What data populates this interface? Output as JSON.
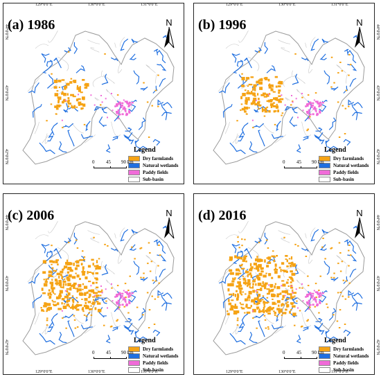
{
  "panels": [
    {
      "title": "(a) 1986",
      "density": 0.0
    },
    {
      "title": "(b) 1996",
      "density": 0.15
    },
    {
      "title": "(c) 2006",
      "density": 0.55
    },
    {
      "title": "(d) 2016",
      "density": 0.75
    }
  ],
  "top_ticks": [
    "129°0'0\"E",
    "130°0'0\"E",
    "131°0'0\"E"
  ],
  "bottom_ticks": [
    "129°0'0\"E",
    "130°0'0\"E",
    "131°0'0\"E"
  ],
  "side_ticks": [
    "44°0'0\"N",
    "43°0'0\"N",
    "42°0'0\"N"
  ],
  "north_label": "N",
  "legend": {
    "title": "Legend",
    "items": [
      {
        "label": "Dry farmlands",
        "color": "#f5a315"
      },
      {
        "label": "Natural wetlands",
        "color": "#1f6fe0"
      },
      {
        "label": "Paddy fields",
        "color": "#f06bd8"
      },
      {
        "label": "Sub-basin",
        "color": "#ffffff"
      }
    ]
  },
  "scale": {
    "l0": "0",
    "l1": "45",
    "l2": "90 km"
  },
  "colors": {
    "dry": "#f5a315",
    "wet": "#1f6fe0",
    "paddy": "#f06bd8",
    "boundary": "#9a9a9a"
  }
}
